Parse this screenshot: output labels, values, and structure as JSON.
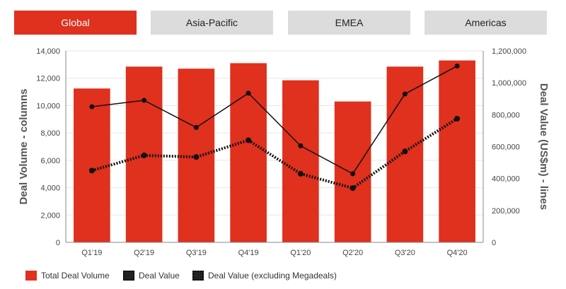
{
  "tabs": [
    {
      "label": "Global",
      "active": true
    },
    {
      "label": "Asia-Pacific",
      "active": false
    },
    {
      "label": "EMEA",
      "active": false
    },
    {
      "label": "Americas",
      "active": false
    }
  ],
  "colors": {
    "accent": "#e0301e",
    "tab_inactive": "#dcdcdc",
    "line": "#222222"
  },
  "legend": {
    "bar_label": "Total Deal Volume",
    "line_label": "Deal Value",
    "dotted_label": "Deal Value (excluding Megadeals)"
  },
  "chart_data": {
    "type": "bar",
    "categories": [
      "Q1'19",
      "Q2'19",
      "Q3'19",
      "Q4'19",
      "Q1'20",
      "Q2'20",
      "Q3'20",
      "Q4'20"
    ],
    "y_left": {
      "label": "Deal Volume - columns",
      "range": [
        0,
        14000
      ],
      "ticks": [
        "0",
        "2,000",
        "4,000",
        "6,000",
        "8,000",
        "10,000",
        "12,000",
        "14,000"
      ]
    },
    "y_right": {
      "label": "Deal Value (US$m) - lines",
      "range": [
        0,
        1200000
      ],
      "ticks": [
        "0",
        "200,000",
        "400,000",
        "600,000",
        "800,000",
        "1,000,000",
        "1,200,000"
      ]
    },
    "series": [
      {
        "name": "Total Deal Volume",
        "type": "bar",
        "axis": "left",
        "values": [
          11250,
          12850,
          12700,
          13100,
          11850,
          10300,
          12850,
          13300
        ]
      },
      {
        "name": "Deal Value",
        "type": "line",
        "axis": "right",
        "values": [
          850000,
          890000,
          720000,
          935000,
          605000,
          430000,
          930000,
          1105000
        ]
      },
      {
        "name": "Deal Value (excluding Megadeals)",
        "type": "dotted-line",
        "axis": "right",
        "values": [
          450000,
          545000,
          535000,
          640000,
          430000,
          340000,
          570000,
          775000
        ]
      }
    ],
    "grid": true
  }
}
